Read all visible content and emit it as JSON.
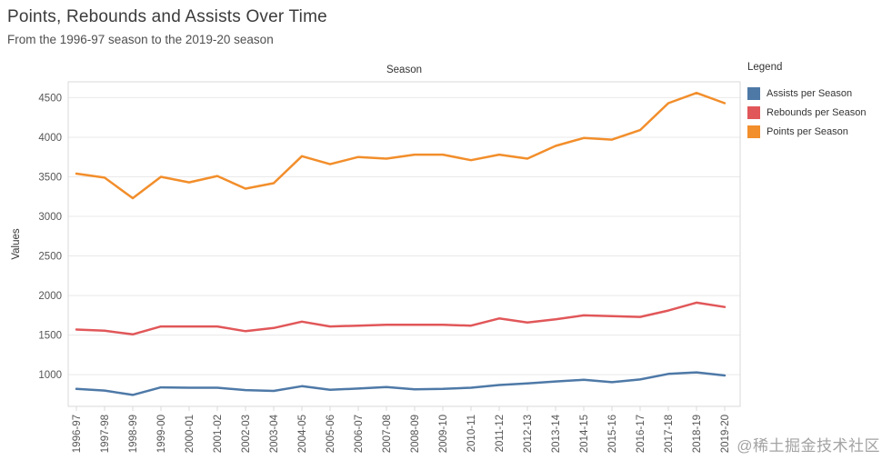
{
  "header": {
    "title": "Points, Rebounds and Assists Over Time",
    "subtitle": "From the 1996-97 season to the 2019-20 season"
  },
  "legend": {
    "title": "Legend",
    "items": [
      {
        "label": "Assists per Season",
        "color": "#4e79a7"
      },
      {
        "label": "Rebounds per Season",
        "color": "#e15759"
      },
      {
        "label": "Points per Season",
        "color": "#f28e2b"
      }
    ]
  },
  "watermark": "@稀土掘金技术社区",
  "chart_data": {
    "type": "line",
    "title": "Points, Rebounds and Assists Over Time",
    "subtitle": "From the 1996-97 season to the 2019-20 season",
    "xlabel": "Season",
    "ylabel": "Values",
    "categories": [
      "1996-97",
      "1997-98",
      "1998-99",
      "1999-00",
      "2000-01",
      "2001-02",
      "2002-03",
      "2003-04",
      "2004-05",
      "2005-06",
      "2006-07",
      "2007-08",
      "2008-09",
      "2009-10",
      "2010-11",
      "2011-12",
      "2012-13",
      "2013-14",
      "2014-15",
      "2015-16",
      "2016-17",
      "2017-18",
      "2018-19",
      "2019-20"
    ],
    "series": [
      {
        "name": "Assists per Season",
        "color": "#4e79a7",
        "values": [
          820,
          800,
          745,
          840,
          835,
          835,
          805,
          795,
          855,
          810,
          825,
          845,
          815,
          820,
          835,
          870,
          890,
          915,
          935,
          905,
          940,
          1010,
          1030,
          990
        ]
      },
      {
        "name": "Rebounds per Season",
        "color": "#e15759",
        "values": [
          1570,
          1555,
          1510,
          1610,
          1610,
          1610,
          1550,
          1590,
          1670,
          1610,
          1620,
          1630,
          1630,
          1630,
          1620,
          1710,
          1660,
          1700,
          1750,
          1740,
          1730,
          1810,
          1910,
          1855
        ]
      },
      {
        "name": "Points per Season",
        "color": "#f28e2b",
        "values": [
          3540,
          3490,
          3230,
          3500,
          3430,
          3510,
          3350,
          3420,
          3760,
          3660,
          3750,
          3730,
          3780,
          3780,
          3710,
          3780,
          3730,
          3890,
          3990,
          3970,
          4090,
          4430,
          4560,
          4430
        ]
      }
    ],
    "ylim": [
      600,
      4700
    ],
    "yticks": [
      1000,
      1500,
      2000,
      2500,
      3000,
      3500,
      4000,
      4500
    ],
    "grid": true,
    "legend_position": "right"
  }
}
